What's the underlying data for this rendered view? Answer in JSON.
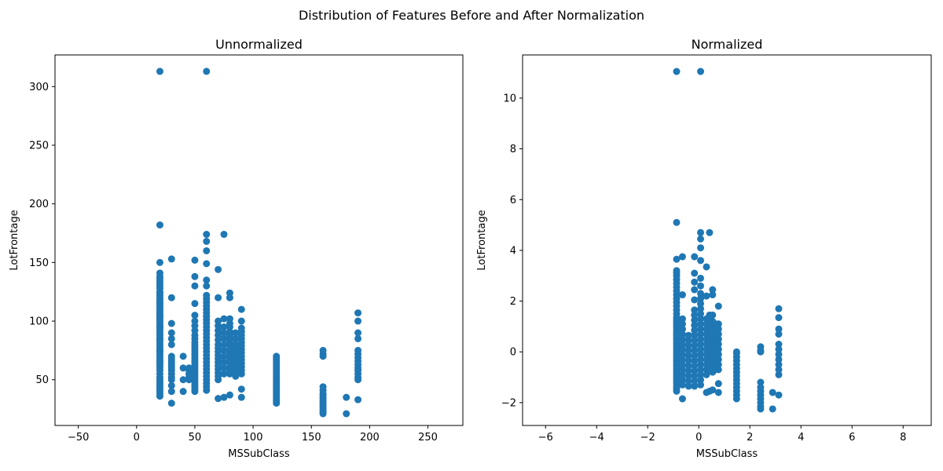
{
  "suptitle": "Distribution of Features Before and After Normalization",
  "colors": {
    "marker": "#1f77b4",
    "axis": "#000000",
    "background": "#ffffff"
  },
  "chart_data": [
    {
      "type": "scatter",
      "title": "Unnormalized",
      "xlabel": "MSSubClass",
      "ylabel": "LotFrontage",
      "xlim": [
        -70,
        280
      ],
      "ylim": [
        11,
        327
      ],
      "xticks": [
        -50,
        0,
        50,
        100,
        150,
        200,
        250
      ],
      "yticks": [
        50,
        100,
        150,
        200,
        250,
        300
      ],
      "grid": false,
      "columns": [
        {
          "x": 20,
          "y": [
            36,
            38,
            40,
            42,
            44,
            46,
            48,
            50,
            52,
            55,
            58,
            60,
            62,
            64,
            65,
            66,
            68,
            70,
            72,
            74,
            75,
            76,
            78,
            80,
            82,
            84,
            85,
            86,
            88,
            90,
            92,
            94,
            95,
            96,
            98,
            100,
            102,
            104,
            105,
            106,
            108,
            110,
            112,
            114,
            115,
            116,
            118,
            120,
            122,
            124,
            125,
            128,
            130,
            132,
            134,
            136,
            138,
            141,
            150,
            182,
            313
          ]
        },
        {
          "x": 30,
          "y": [
            30,
            40,
            45,
            50,
            52,
            55,
            58,
            60,
            62,
            64,
            66,
            68,
            70,
            80,
            85,
            90,
            98,
            120,
            153
          ]
        },
        {
          "x": 40,
          "y": [
            40,
            50,
            60,
            70
          ]
        },
        {
          "x": 45,
          "y": [
            50,
            52,
            55,
            58,
            60
          ]
        },
        {
          "x": 50,
          "y": [
            40,
            42,
            44,
            46,
            48,
            50,
            52,
            54,
            56,
            58,
            60,
            62,
            64,
            66,
            68,
            70,
            72,
            74,
            76,
            78,
            80,
            82,
            85,
            88,
            92,
            96,
            100,
            105,
            115,
            130,
            138,
            152
          ]
        },
        {
          "x": 60,
          "y": [
            41,
            44,
            47,
            50,
            53,
            56,
            59,
            62,
            65,
            68,
            71,
            74,
            77,
            80,
            83,
            86,
            89,
            92,
            95,
            98,
            101,
            104,
            107,
            110,
            113,
            116,
            119,
            122,
            130,
            135,
            149,
            160,
            168,
            174,
            313
          ]
        },
        {
          "x": 70,
          "y": [
            34,
            50,
            53,
            56,
            59,
            62,
            65,
            68,
            71,
            74,
            77,
            80,
            84,
            88,
            92,
            96,
            100,
            120,
            144
          ]
        },
        {
          "x": 75,
          "y": [
            35,
            55,
            60,
            65,
            70,
            75,
            80,
            85,
            90,
            95,
            102,
            174
          ]
        },
        {
          "x": 80,
          "y": [
            37,
            55,
            58,
            61,
            64,
            67,
            70,
            73,
            76,
            79,
            82,
            85,
            88,
            91,
            95,
            98,
            102,
            120,
            124
          ]
        },
        {
          "x": 85,
          "y": [
            53,
            56,
            60,
            64,
            68,
            72,
            76,
            80,
            85,
            90
          ]
        },
        {
          "x": 90,
          "y": [
            35,
            42,
            55,
            58,
            61,
            64,
            67,
            70,
            73,
            76,
            79,
            82,
            85,
            88,
            91,
            94,
            100,
            110
          ]
        },
        {
          "x": 120,
          "y": [
            30,
            32,
            34,
            36,
            38,
            40,
            42,
            44,
            46,
            48,
            50,
            52,
            54,
            56,
            58,
            60,
            62,
            64,
            66,
            68,
            70
          ]
        },
        {
          "x": 160,
          "y": [
            21,
            22,
            24,
            26,
            28,
            30,
            32,
            34,
            36,
            38,
            41,
            44,
            70,
            72,
            75
          ]
        },
        {
          "x": 180,
          "y": [
            21,
            35
          ]
        },
        {
          "x": 190,
          "y": [
            33,
            50,
            52,
            55,
            58,
            60,
            63,
            66,
            69,
            72,
            75,
            85,
            90,
            100,
            107
          ]
        }
      ]
    },
    {
      "type": "scatter",
      "title": "Normalized",
      "xlabel": "MSSubClass",
      "ylabel": "LotFrontage",
      "xlim": [
        -6.9,
        9.1
      ],
      "ylim": [
        -2.9,
        11.7
      ],
      "xticks": [
        -6,
        -4,
        -2,
        0,
        2,
        4,
        6,
        8
      ],
      "yticks": [
        -2,
        0,
        2,
        4,
        6,
        8,
        10
      ],
      "grid": false,
      "columns": [
        {
          "x": -0.87,
          "y": [
            -1.55,
            -1.45,
            -1.35,
            -1.25,
            -1.15,
            -1.05,
            -0.95,
            -0.85,
            -0.75,
            -0.65,
            -0.55,
            -0.45,
            -0.35,
            -0.25,
            -0.15,
            -0.05,
            0.05,
            0.15,
            0.25,
            0.35,
            0.45,
            0.55,
            0.65,
            0.75,
            0.85,
            0.95,
            1.05,
            1.15,
            1.25,
            1.35,
            1.5,
            1.65,
            1.8,
            1.95,
            2.1,
            2.25,
            2.4,
            2.55,
            2.7,
            2.85,
            3.0,
            3.1,
            3.2,
            3.65,
            5.1,
            11.05
          ]
        },
        {
          "x": -0.64,
          "y": [
            -1.85,
            -1.3,
            -1.1,
            -0.9,
            -0.7,
            -0.5,
            -0.3,
            -0.1,
            0.1,
            0.3,
            0.5,
            0.7,
            0.9,
            1.1,
            1.3,
            2.25,
            3.75
          ]
        },
        {
          "x": -0.4,
          "y": [
            -1.35,
            -1.15,
            -0.95,
            -0.75,
            -0.55,
            -0.35,
            -0.15,
            0.05,
            0.25,
            0.45,
            0.65
          ]
        },
        {
          "x": -0.17,
          "y": [
            -1.35,
            -1.15,
            -0.95,
            -0.75,
            -0.55,
            -0.35,
            -0.15,
            0.05,
            0.25,
            0.45,
            0.65,
            0.85,
            1.05,
            1.25,
            1.45,
            1.65,
            2.05,
            2.45,
            2.75,
            3.1,
            3.75
          ]
        },
        {
          "x": 0.07,
          "y": [
            -1.3,
            -1.1,
            -0.9,
            -0.7,
            -0.5,
            -0.3,
            -0.1,
            0.1,
            0.3,
            0.5,
            0.7,
            0.9,
            1.1,
            1.3,
            1.5,
            1.7,
            1.9,
            2.1,
            2.3,
            2.6,
            2.9,
            3.6,
            4.1,
            4.45,
            4.7,
            11.05
          ]
        },
        {
          "x": 0.3,
          "y": [
            -1.6,
            -0.9,
            -0.7,
            -0.5,
            -0.3,
            -0.1,
            0.1,
            0.3,
            0.5,
            0.7,
            0.9,
            1.1,
            1.3,
            2.2,
            3.35
          ]
        },
        {
          "x": 0.42,
          "y": [
            -1.55,
            -0.6,
            -0.4,
            -0.2,
            0.0,
            0.2,
            0.4,
            0.6,
            0.8,
            1.0,
            1.2,
            1.45,
            4.7
          ]
        },
        {
          "x": 0.54,
          "y": [
            -1.5,
            -0.8,
            -0.6,
            -0.4,
            -0.2,
            0.0,
            0.2,
            0.4,
            0.6,
            0.8,
            1.0,
            1.2,
            1.45,
            2.25,
            2.45
          ]
        },
        {
          "x": 0.66,
          "y": [
            -0.7,
            -0.5,
            -0.3,
            -0.1,
            0.1,
            0.3,
            0.5,
            0.7,
            0.9,
            1.1
          ]
        },
        {
          "x": 0.77,
          "y": [
            -1.6,
            -1.25,
            -0.7,
            -0.5,
            -0.3,
            -0.1,
            0.1,
            0.3,
            0.5,
            0.7,
            0.9,
            1.1,
            1.8
          ]
        },
        {
          "x": 1.48,
          "y": [
            -1.85,
            -1.7,
            -1.55,
            -1.4,
            -1.25,
            -1.1,
            -0.95,
            -0.8,
            -0.65,
            -0.5,
            -0.35,
            -0.2,
            -0.05,
            0.0
          ]
        },
        {
          "x": 2.42,
          "y": [
            -2.25,
            -2.15,
            -2.0,
            -1.85,
            -1.7,
            -1.55,
            -1.4,
            -1.2,
            0.0,
            0.05,
            0.2
          ]
        },
        {
          "x": 2.89,
          "y": [
            -2.25,
            -1.6
          ]
        },
        {
          "x": 3.13,
          "y": [
            -1.7,
            -0.9,
            -0.7,
            -0.5,
            -0.3,
            -0.1,
            0.1,
            0.3,
            0.7,
            0.9,
            1.35,
            1.7
          ]
        }
      ]
    }
  ]
}
